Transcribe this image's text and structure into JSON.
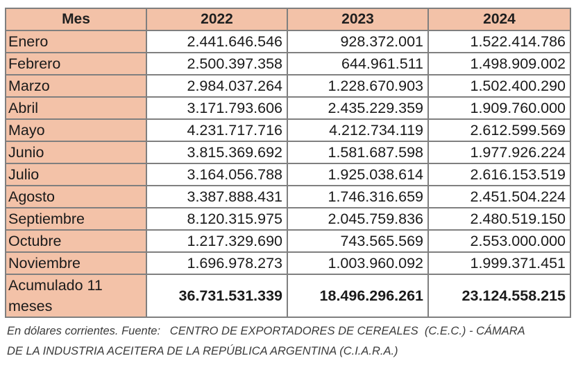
{
  "table": {
    "headers": [
      "Mes",
      "2022",
      "2023",
      "2024"
    ],
    "rows": [
      [
        "Enero",
        "2.441.646.546",
        "928.372.001",
        "1.522.414.786"
      ],
      [
        "Febrero",
        "2.500.397.358",
        "644.961.511",
        "1.498.909.002"
      ],
      [
        "Marzo",
        "2.984.037.264",
        "1.228.670.903",
        "1.502.400.290"
      ],
      [
        "Abril",
        "3.171.793.606",
        "2.435.229.359",
        "1.909.760.000"
      ],
      [
        "Mayo",
        "4.231.717.716",
        "4.212.734.119",
        "2.612.599.569"
      ],
      [
        "Junio",
        "3.815.369.692",
        "1.581.687.598",
        "1.977.926.224"
      ],
      [
        "Julio",
        "3.164.056.788",
        "1.925.038.614",
        "2.616.153.519"
      ],
      [
        "Agosto",
        "3.387.888.431",
        "1.746.316.659",
        "2.451.504.224"
      ],
      [
        "Septiembre",
        "8.120.315.975",
        "2.045.759.836",
        "2.480.519.150"
      ],
      [
        "Octubre",
        "1.217.329.690",
        "743.565.569",
        "2.553.000.000"
      ],
      [
        "Noviembre",
        "1.696.978.273",
        "1.003.960.092",
        "1.999.371.451"
      ]
    ],
    "total": [
      "Acumulado 11 meses",
      "36.731.531.339",
      "18.496.296.261",
      "23.124.558.215"
    ]
  },
  "footnote": {
    "line1": "En dólares corrientes. Fuente:   CENTRO DE EXPORTADORES DE CEREALES  (C.E.C.) - CÁMARA",
    "line2": "DE LA INDUSTRIA ACEITERA DE LA REPÚBLICA ARGENTINA (C.I.A.R.A.)"
  }
}
